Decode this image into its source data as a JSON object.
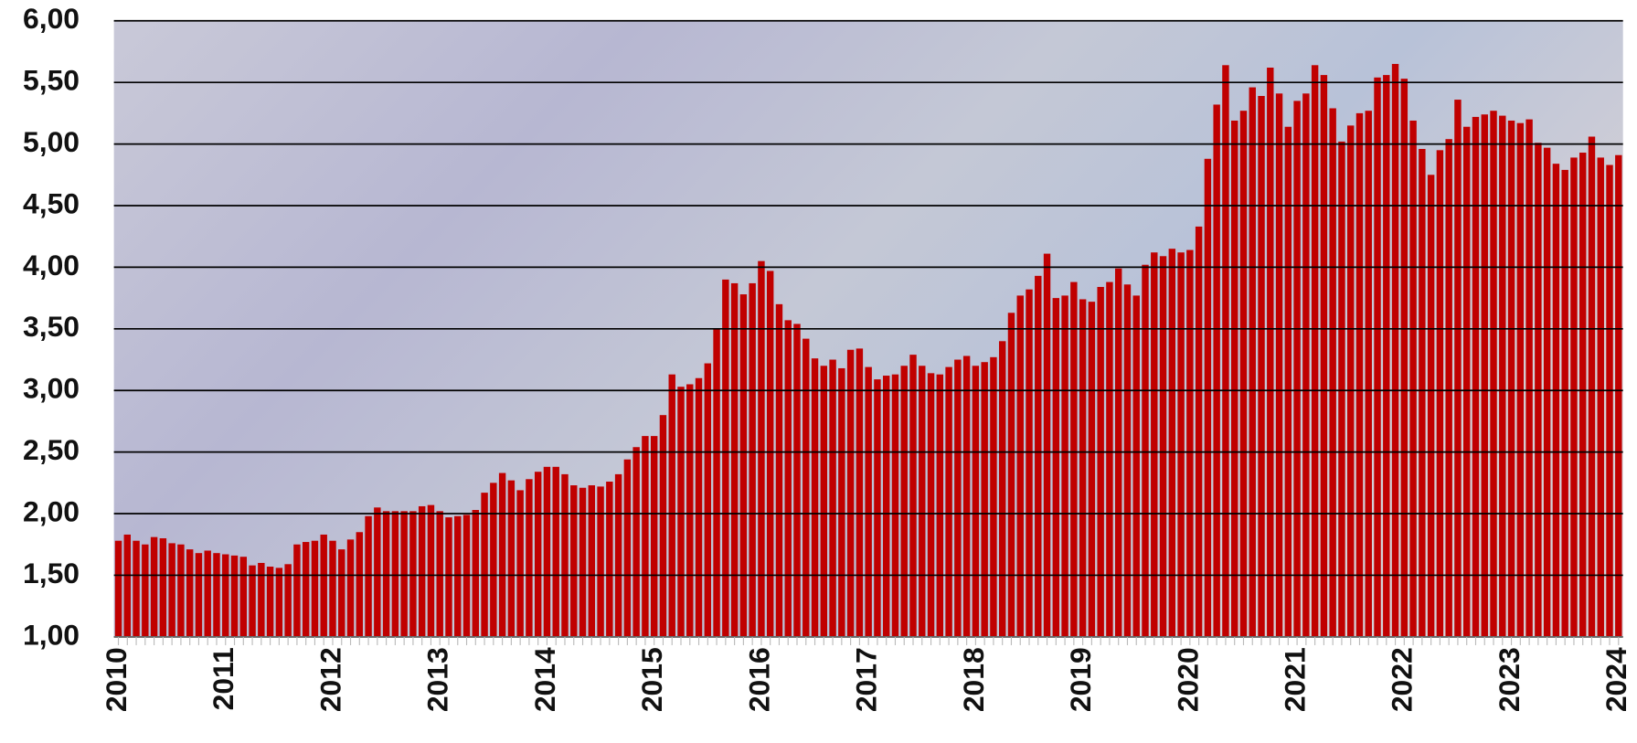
{
  "chart_data": {
    "type": "bar",
    "categories": [
      "2010",
      null,
      null,
      null,
      null,
      null,
      null,
      null,
      null,
      null,
      null,
      null,
      "2011",
      null,
      null,
      null,
      null,
      null,
      null,
      null,
      null,
      null,
      null,
      null,
      "2012",
      null,
      null,
      null,
      null,
      null,
      null,
      null,
      null,
      null,
      null,
      null,
      "2013",
      null,
      null,
      null,
      null,
      null,
      null,
      null,
      null,
      null,
      null,
      null,
      "2014",
      null,
      null,
      null,
      null,
      null,
      null,
      null,
      null,
      null,
      null,
      null,
      "2015",
      null,
      null,
      null,
      null,
      null,
      null,
      null,
      null,
      null,
      null,
      null,
      "2016",
      null,
      null,
      null,
      null,
      null,
      null,
      null,
      null,
      null,
      null,
      null,
      "2017",
      null,
      null,
      null,
      null,
      null,
      null,
      null,
      null,
      null,
      null,
      null,
      "2018",
      null,
      null,
      null,
      null,
      null,
      null,
      null,
      null,
      null,
      null,
      null,
      "2019",
      null,
      null,
      null,
      null,
      null,
      null,
      null,
      null,
      null,
      null,
      null,
      "2020",
      null,
      null,
      null,
      null,
      null,
      null,
      null,
      null,
      null,
      null,
      null,
      "2021",
      null,
      null,
      null,
      null,
      null,
      null,
      null,
      null,
      null,
      null,
      null,
      "2022",
      null,
      null,
      null,
      null,
      null,
      null,
      null,
      null,
      null,
      null,
      null,
      "2023",
      null,
      null,
      null,
      null,
      null,
      null,
      null,
      null,
      null,
      null,
      null,
      "2024"
    ],
    "values": [
      1.78,
      1.83,
      1.78,
      1.75,
      1.81,
      1.8,
      1.76,
      1.75,
      1.71,
      1.68,
      1.7,
      1.68,
      1.67,
      1.66,
      1.65,
      1.58,
      1.6,
      1.57,
      1.56,
      1.59,
      1.75,
      1.77,
      1.78,
      1.83,
      1.78,
      1.71,
      1.79,
      1.85,
      1.98,
      2.05,
      2.02,
      2.02,
      2.02,
      2.02,
      2.06,
      2.07,
      2.02,
      1.97,
      1.98,
      1.99,
      2.03,
      2.17,
      2.25,
      2.33,
      2.27,
      2.19,
      2.28,
      2.34,
      2.38,
      2.38,
      2.32,
      2.23,
      2.21,
      2.23,
      2.22,
      2.26,
      2.32,
      2.44,
      2.54,
      2.63,
      2.63,
      2.8,
      3.13,
      3.03,
      3.05,
      3.1,
      3.22,
      3.5,
      3.9,
      3.87,
      3.78,
      3.87,
      4.05,
      3.97,
      3.7,
      3.57,
      3.54,
      3.42,
      3.26,
      3.2,
      3.25,
      3.18,
      3.33,
      3.34,
      3.19,
      3.09,
      3.12,
      3.13,
      3.2,
      3.29,
      3.2,
      3.14,
      3.13,
      3.19,
      3.25,
      3.28,
      3.2,
      3.23,
      3.27,
      3.4,
      3.63,
      3.77,
      3.82,
      3.93,
      4.11,
      3.75,
      3.77,
      3.88,
      3.74,
      3.72,
      3.84,
      3.88,
      3.99,
      3.86,
      3.77,
      4.02,
      4.12,
      4.09,
      4.15,
      4.12,
      4.14,
      4.33,
      4.88,
      5.32,
      5.64,
      5.19,
      5.27,
      5.46,
      5.39,
      5.62,
      5.41,
      5.14,
      5.35,
      5.41,
      5.64,
      5.56,
      5.29,
      5.02,
      5.15,
      5.25,
      5.27,
      5.54,
      5.56,
      5.65,
      5.53,
      5.19,
      4.96,
      4.75,
      4.95,
      5.04,
      5.36,
      5.14,
      5.22,
      5.24,
      5.27,
      5.23,
      5.19,
      5.17,
      5.2,
      5.01,
      4.97,
      4.84,
      4.79,
      4.89,
      4.93,
      5.06,
      4.89,
      4.83,
      4.91
    ],
    "color": "#c00000",
    "ylim": [
      1,
      6
    ],
    "yticks": [
      {
        "value": 1,
        "label": "1,00"
      },
      {
        "value": 1.5,
        "label": "1,50"
      },
      {
        "value": 2,
        "label": "2,00"
      },
      {
        "value": 2.5,
        "label": "2,50"
      },
      {
        "value": 3,
        "label": "3,00"
      },
      {
        "value": 3.5,
        "label": "3,50"
      },
      {
        "value": 4,
        "label": "4,00"
      },
      {
        "value": 4.5,
        "label": "4,50"
      },
      {
        "value": 5,
        "label": "5,00"
      },
      {
        "value": 5.5,
        "label": "5,50"
      },
      {
        "value": 6,
        "label": "6,00"
      }
    ],
    "grid": true
  }
}
